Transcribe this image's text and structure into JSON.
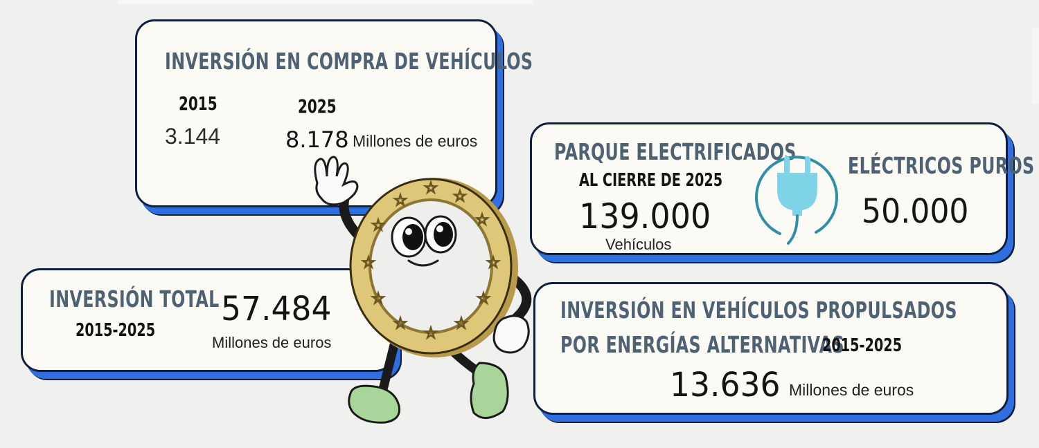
{
  "compra": {
    "title": "INVERSIÓN EN COMPRA DE VEHÍCULOS",
    "year_a": "2015",
    "year_b": "2025",
    "value_a": "3.144",
    "value_b": "8.178",
    "unit": "Millones de euros"
  },
  "parque": {
    "title": "PARQUE ELECTRIFICADOS",
    "subtitle": "AL CIERRE DE 2025",
    "value": "139.000",
    "unit": "Vehículos",
    "puros_title": "ELÉCTRICOS PUROS",
    "puros_value": "50.000",
    "icon": "plug-icon"
  },
  "total": {
    "title": "INVERSIÓN TOTAL",
    "period": "2015-2025",
    "value": "57.484",
    "unit": "Millones de euros"
  },
  "alternativas": {
    "title_line1": "INVERSIÓN EN VEHÍCULOS PROPULSADOS",
    "title_line2": "POR ENERGÍAS ALTERNATIVAS",
    "period": "2015-2025",
    "value": "13.636",
    "unit": "Millones de euros"
  },
  "mascot": {
    "name": "euro-coin-mascot"
  },
  "colors": {
    "card_bg": "#fcfaf5",
    "card_border": "#0f1f3d",
    "shadow_blue": "#2f6fe0",
    "heading": "#4f6273",
    "plug": "#7ed3e6",
    "coin_gold": "#dfc77a",
    "shoe_green": "#a8d59a"
  }
}
